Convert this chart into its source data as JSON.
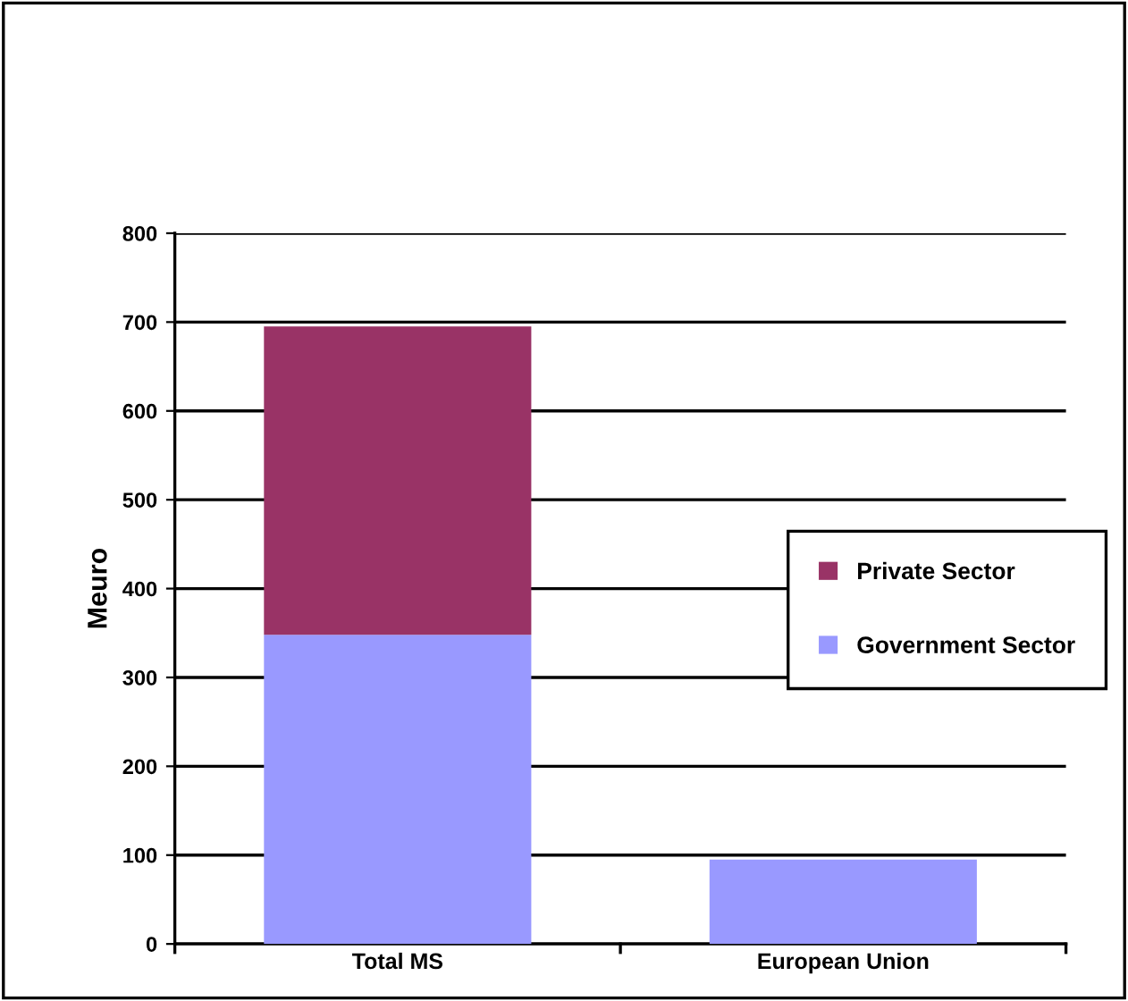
{
  "chart_data": {
    "type": "bar",
    "stacked": true,
    "ylabel": "Meuro",
    "categories": [
      "Total MS",
      "European Union"
    ],
    "series": [
      {
        "name": "Government Sector",
        "color": "#9999ff",
        "values": [
          348,
          95
        ]
      },
      {
        "name": "Private Sector",
        "color": "#993366",
        "values": [
          347,
          null
        ]
      }
    ],
    "ylim": [
      0,
      800
    ],
    "yticks": [
      0,
      100,
      200,
      300,
      400,
      500,
      600,
      700,
      800
    ],
    "grid": "y",
    "legend": "right"
  }
}
